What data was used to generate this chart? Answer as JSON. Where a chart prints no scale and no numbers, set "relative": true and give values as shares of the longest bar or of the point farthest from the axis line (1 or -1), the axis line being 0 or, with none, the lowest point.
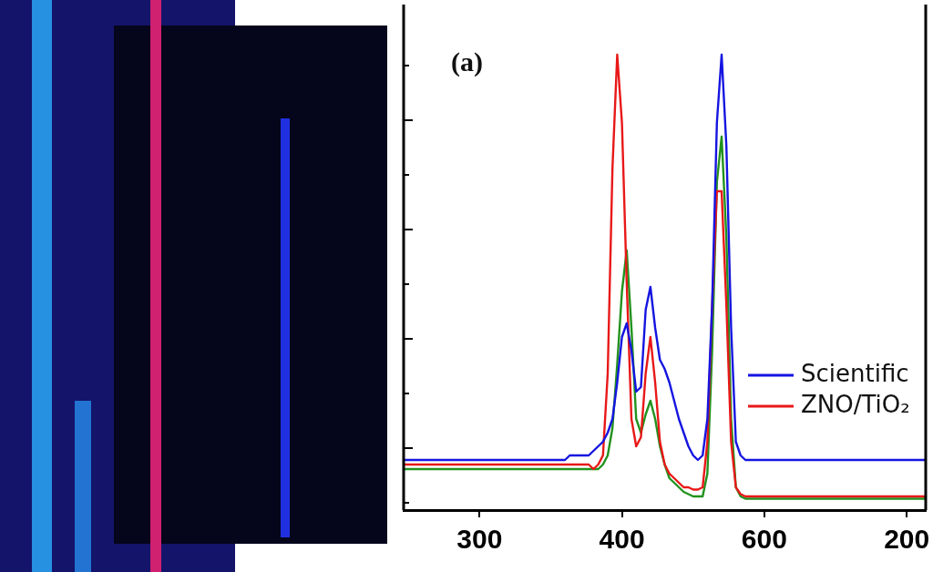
{
  "chart_data": {
    "type": "line",
    "relative": true,
    "annotations": [
      "(a)"
    ],
    "legend": "right",
    "grid": false,
    "marker": "none",
    "categories": [
      null,
      null,
      null,
      null,
      null,
      null,
      null,
      null,
      null,
      null,
      null,
      null,
      null,
      null,
      null,
      null,
      "300",
      null,
      null,
      null,
      null,
      null,
      null,
      null,
      null,
      null,
      null,
      null,
      null,
      null,
      null,
      null,
      null,
      null,
      null,
      null,
      null,
      null,
      null,
      null,
      null,
      null,
      null,
      null,
      null,
      null,
      "400",
      null,
      null,
      null,
      null,
      null,
      null,
      null,
      null,
      null,
      null,
      null,
      null,
      null,
      null,
      null,
      null,
      null,
      null,
      null,
      null,
      null,
      null,
      null,
      null,
      null,
      null,
      null,
      null,
      null,
      "600",
      null,
      null,
      null,
      null,
      null,
      null,
      null,
      null,
      null,
      null,
      null,
      null,
      null,
      null,
      null,
      null,
      null,
      null,
      null,
      null,
      null,
      null,
      null,
      null,
      null,
      null,
      null,
      null,
      null,
      "200",
      null,
      null,
      null,
      null
    ],
    "series": [
      {
        "name": "Scientific",
        "color": "#1515e0",
        "values": [
          0.11,
          0.11,
          0.11,
          0.11,
          0.11,
          0.11,
          0.11,
          0.11,
          0.11,
          0.11,
          0.11,
          0.11,
          0.11,
          0.11,
          0.11,
          0.11,
          0.11,
          0.11,
          0.11,
          0.11,
          0.11,
          0.11,
          0.11,
          0.11,
          0.11,
          0.11,
          0.11,
          0.11,
          0.11,
          0.11,
          0.11,
          0.11,
          0.11,
          0.11,
          0.11,
          0.12,
          0.12,
          0.12,
          0.12,
          0.12,
          0.13,
          0.14,
          0.15,
          0.17,
          0.2,
          0.28,
          0.38,
          0.41,
          0.35,
          0.26,
          0.27,
          0.44,
          0.49,
          0.4,
          0.33,
          0.31,
          0.28,
          0.24,
          0.2,
          0.17,
          0.14,
          0.12,
          0.11,
          0.12,
          0.2,
          0.45,
          0.85,
          1,
          0.8,
          0.4,
          0.15,
          0.12,
          0.11,
          0.11,
          0.11,
          0.11,
          0.11,
          0.11,
          0.11,
          0.11,
          0.11,
          0.11,
          0.11,
          0.11,
          0.11,
          0.11,
          0.11,
          0.11,
          0.11,
          0.11,
          0.11,
          0.11,
          0.11,
          0.11,
          0.11,
          0.11,
          0.11,
          0.11,
          0.11,
          0.11,
          0.11,
          0.11,
          0.11,
          0.11,
          0.11,
          0.11,
          0.11,
          0.11,
          0.11,
          0.11,
          0.11
        ]
      },
      {
        "name": "ZNO/TiO₂",
        "color": "#e81818",
        "values": [
          0.1,
          0.1,
          0.1,
          0.1,
          0.1,
          0.1,
          0.1,
          0.1,
          0.1,
          0.1,
          0.1,
          0.1,
          0.1,
          0.1,
          0.1,
          0.1,
          0.1,
          0.1,
          0.1,
          0.1,
          0.1,
          0.1,
          0.1,
          0.1,
          0.1,
          0.1,
          0.1,
          0.1,
          0.1,
          0.1,
          0.1,
          0.1,
          0.1,
          0.1,
          0.1,
          0.1,
          0.1,
          0.1,
          0.1,
          0.1,
          0.09,
          0.1,
          0.12,
          0.3,
          0.75,
          1,
          0.85,
          0.5,
          0.2,
          0.14,
          0.16,
          0.3,
          0.38,
          0.28,
          0.15,
          0.1,
          0.08,
          0.07,
          0.06,
          0.05,
          0.05,
          0.045,
          0.045,
          0.05,
          0.15,
          0.45,
          0.7,
          0.7,
          0.45,
          0.15,
          0.05,
          0.035,
          0.03,
          0.03,
          0.03,
          0.03,
          0.03,
          0.03,
          0.03,
          0.03,
          0.03,
          0.03,
          0.03,
          0.03,
          0.03,
          0.03,
          0.03,
          0.03,
          0.03,
          0.03,
          0.03,
          0.03,
          0.03,
          0.03,
          0.03,
          0.03,
          0.03,
          0.03,
          0.03,
          0.03,
          0.03,
          0.03,
          0.03,
          0.03,
          0.03,
          0.03,
          0.03,
          0.03,
          0.03,
          0.03,
          0.03
        ]
      },
      {
        "color": "#22921e",
        "values": [
          0.09,
          0.09,
          0.09,
          0.09,
          0.09,
          0.09,
          0.09,
          0.09,
          0.09,
          0.09,
          0.09,
          0.09,
          0.09,
          0.09,
          0.09,
          0.09,
          0.09,
          0.09,
          0.09,
          0.09,
          0.09,
          0.09,
          0.09,
          0.09,
          0.09,
          0.09,
          0.09,
          0.09,
          0.09,
          0.09,
          0.09,
          0.09,
          0.09,
          0.09,
          0.09,
          0.09,
          0.09,
          0.09,
          0.09,
          0.09,
          0.09,
          0.09,
          0.1,
          0.12,
          0.18,
          0.32,
          0.48,
          0.57,
          0.4,
          0.2,
          0.17,
          0.21,
          0.24,
          0.2,
          0.14,
          0.1,
          0.07,
          0.06,
          0.05,
          0.04,
          0.035,
          0.03,
          0.03,
          0.03,
          0.08,
          0.35,
          0.72,
          0.82,
          0.6,
          0.2,
          0.05,
          0.03,
          0.025,
          0.025,
          0.025,
          0.025,
          0.025,
          0.025,
          0.025,
          0.025,
          0.025,
          0.025,
          0.025,
          0.025,
          0.025,
          0.025,
          0.025,
          0.025,
          0.025,
          0.025,
          0.025,
          0.025,
          0.025,
          0.025,
          0.025,
          0.025,
          0.025,
          0.025,
          0.025,
          0.025,
          0.025,
          0.025,
          0.025,
          0.025,
          0.025,
          0.025,
          0.025,
          0.025,
          0.025,
          0.025,
          0.025
        ]
      }
    ]
  }
}
